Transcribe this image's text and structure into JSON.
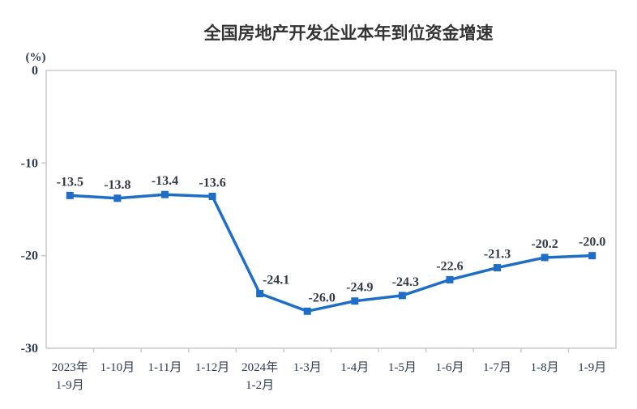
{
  "chart_data": {
    "type": "line",
    "title": "全国房地产开发企业本年到位资金增速",
    "ylabel": "(%)",
    "xlabel": "",
    "categories": [
      "2023年\n1-9月",
      "1-10月",
      "1-11月",
      "1-12月",
      "2024年\n1-2月",
      "1-3月",
      "1-4月",
      "1-5月",
      "1-6月",
      "1-7月",
      "1-8月",
      "1-9月"
    ],
    "values": [
      -13.5,
      -13.8,
      -13.4,
      -13.6,
      -24.1,
      -26.0,
      -24.9,
      -24.3,
      -22.6,
      -21.3,
      -20.2,
      -20.0
    ],
    "point_labels": [
      "-13.5",
      "-13.8",
      "-13.4",
      "-13.6",
      "-24.1",
      "-26.0",
      "-24.9",
      "-24.3",
      "-22.6",
      "-21.3",
      "-20.2",
      "-20.0"
    ],
    "ylim": [
      -30,
      0
    ],
    "yticks": [
      0,
      -10,
      -20,
      -30
    ],
    "ytick_labels": [
      "0",
      "-10",
      "-20",
      "-30"
    ],
    "grid": false,
    "legend": "none",
    "marker": "square",
    "label_dx": [
      0,
      0,
      0,
      0,
      20,
      18,
      6,
      4,
      0,
      0,
      0,
      0
    ]
  },
  "colors": {
    "line": "#1e6ec8",
    "marker": "#1e6ec8",
    "axis": "#c9c9c9",
    "title_text": "#333333",
    "axis_text": "#2f3b55",
    "data_label_text": "#333a47",
    "background": "#ffffff"
  }
}
